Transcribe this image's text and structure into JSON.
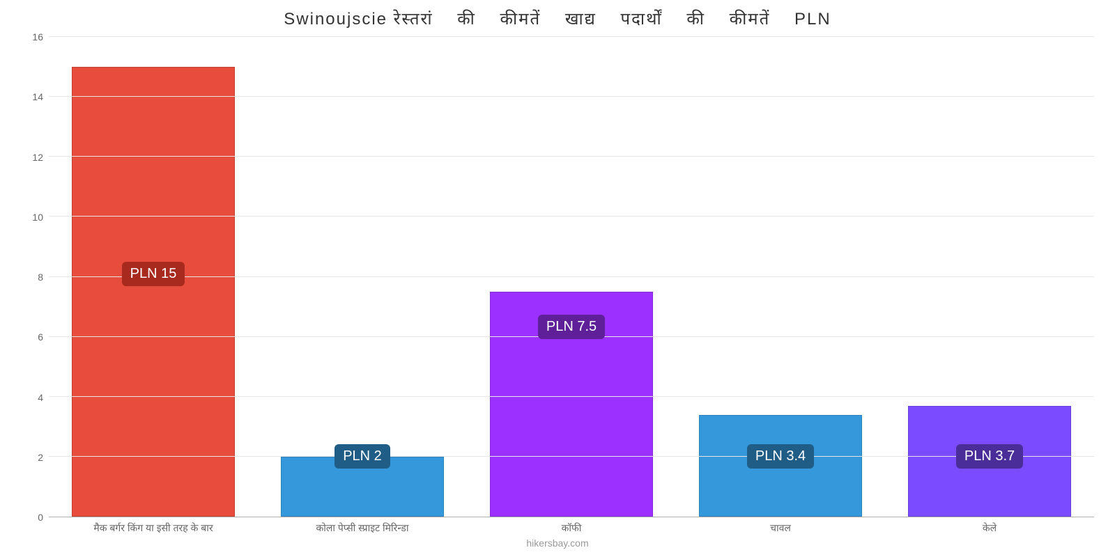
{
  "chart": {
    "type": "bar",
    "title": "Swinoujscie रेस्तरां    की    कीमतें    खाद्य    पदार्थों    की    कीमतें    PLN",
    "title_fontsize": 24,
    "title_color": "#333333",
    "background_color": "#ffffff",
    "grid_color": "#e6e6e6",
    "axis_font_color": "#666666",
    "axis_fontsize": 14,
    "ylim": [
      0,
      16
    ],
    "ytick_step": 2,
    "yticks": [
      0,
      2,
      4,
      6,
      8,
      10,
      12,
      14,
      16
    ],
    "bar_width": 0.78,
    "categories": [
      "मैक बर्गर किंग या इसी तरह के बार",
      "कोला पेप्सी स्प्राइट मिरिन्डा",
      "कॉफी",
      "चावल",
      "केले"
    ],
    "values": [
      15,
      2,
      7.5,
      3.4,
      3.7
    ],
    "value_labels": [
      "PLN 15",
      "PLN 2",
      "PLN 7.5",
      "PLN 3.4",
      "PLN 3.7"
    ],
    "bar_colors": [
      "#e74c3c",
      "#3498db",
      "#9b30ff",
      "#3498db",
      "#7b4cff"
    ],
    "label_bg_colors": [
      "#a82a1f",
      "#1f5d87",
      "#5e1f99",
      "#1f5d87",
      "#4a2d99"
    ],
    "label_text_color": "#ffffff",
    "label_fontsize": 20,
    "value_label_y_offset_pct": [
      48,
      10,
      37,
      10,
      10
    ],
    "footer": "hikersbay.com",
    "footer_color": "#999999"
  }
}
